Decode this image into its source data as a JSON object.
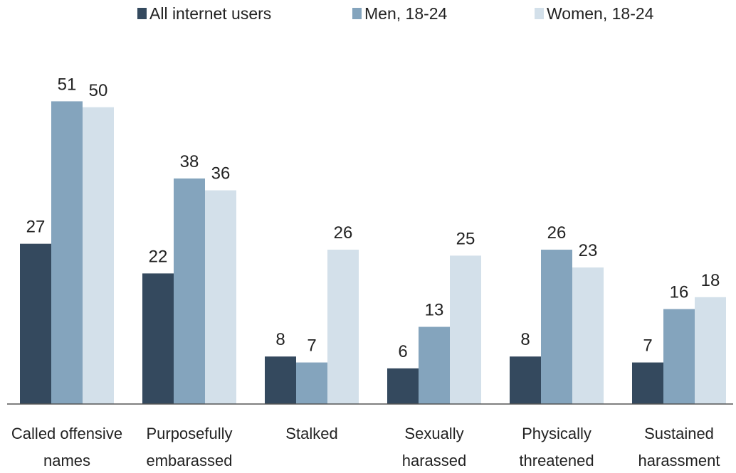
{
  "chart_data": {
    "type": "bar",
    "categories": [
      [
        "Called offensive",
        "names"
      ],
      [
        "Purposefully",
        "embarassed"
      ],
      [
        "Stalked"
      ],
      [
        "Sexually",
        "harassed"
      ],
      [
        "Physically",
        "threatened"
      ],
      [
        "Sustained",
        "harassment"
      ]
    ],
    "series": [
      {
        "name": "All internet users",
        "color": "#34495e",
        "values": [
          27,
          22,
          8,
          6,
          8,
          7
        ]
      },
      {
        "name": "Men, 18-24",
        "color": "#84a4bd",
        "values": [
          51,
          38,
          7,
          13,
          26,
          16
        ]
      },
      {
        "name": "Women, 18-24",
        "color": "#d3e0ea",
        "values": [
          50,
          36,
          26,
          25,
          23,
          18
        ]
      }
    ],
    "ylim": [
      0,
      58
    ],
    "grid": false,
    "legend_position": "top"
  }
}
